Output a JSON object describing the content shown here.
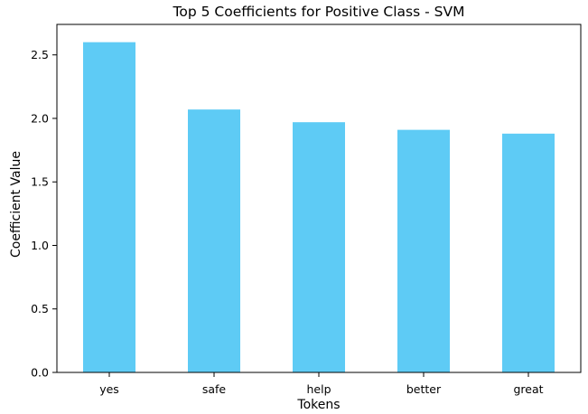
{
  "chart_data": {
    "type": "bar",
    "title": "Top 5 Coefficients for Positive Class - SVM",
    "xlabel": "Tokens",
    "ylabel": "Coefficient Value",
    "categories": [
      "yes",
      "safe",
      "help",
      "better",
      "great"
    ],
    "values": [
      2.6,
      2.07,
      1.97,
      1.91,
      1.88
    ],
    "ylim": [
      0,
      2.74
    ],
    "yticks": [
      {
        "value": 0.0,
        "label": "0.0"
      },
      {
        "value": 0.5,
        "label": "0.5"
      },
      {
        "value": 1.0,
        "label": "1.0"
      },
      {
        "value": 1.5,
        "label": "1.5"
      },
      {
        "value": 2.0,
        "label": "2.0"
      },
      {
        "value": 2.5,
        "label": "2.5"
      }
    ],
    "grid": false,
    "legend": "none",
    "bar_color": "#5ecbf5"
  }
}
